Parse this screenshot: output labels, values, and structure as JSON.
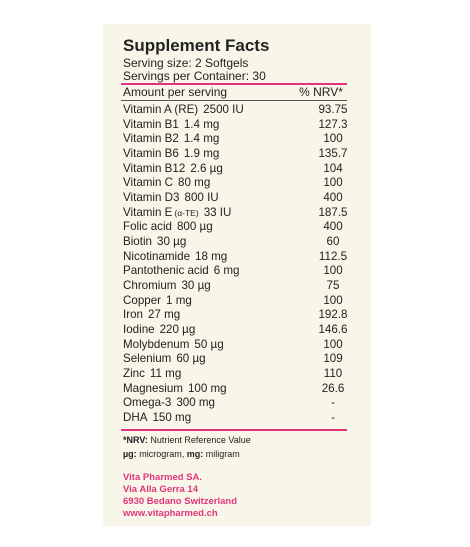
{
  "header": {
    "title": "Supplement Facts",
    "serving_size": "Serving size: 2 Softgels",
    "servings_per_container": "Servings per Container: 30"
  },
  "table": {
    "columns": [
      "Amount per serving",
      "% NRV*"
    ],
    "rows": [
      {
        "name": "Vitamin A (RE)",
        "amount": "2500 IU",
        "nrv": "93.75"
      },
      {
        "name": "Vitamin B1",
        "amount": "1.4 mg",
        "nrv": "127.3"
      },
      {
        "name": "Vitamin B2",
        "amount": "1.4 mg",
        "nrv": "100"
      },
      {
        "name": "Vitamin B6",
        "amount": "1.9 mg",
        "nrv": "135.7"
      },
      {
        "name": "Vitamin B12",
        "amount": "2.6 µg",
        "nrv": "104"
      },
      {
        "name": "Vitamin C",
        "amount": "80 mg",
        "nrv": "100"
      },
      {
        "name": "Vitamin D3",
        "amount": "800 IU",
        "nrv": "400"
      },
      {
        "name": "Vitamin E",
        "note": "(α-TE)",
        "amount": "33 IU",
        "nrv": "187.5"
      },
      {
        "name": "Folic acid",
        "amount": "800 µg",
        "nrv": "400"
      },
      {
        "name": "Biotin",
        "amount": "30 µg",
        "nrv": "60"
      },
      {
        "name": "Nicotinamide",
        "amount": "18 mg",
        "nrv": "112.5"
      },
      {
        "name": "Pantothenic acid",
        "amount": "6 mg",
        "nrv": "100"
      },
      {
        "name": "Chromium",
        "amount": "30 µg",
        "nrv": "75"
      },
      {
        "name": "Copper",
        "amount": "1 mg",
        "nrv": "100"
      },
      {
        "name": "Iron",
        "amount": "27 mg",
        "nrv": "192.8"
      },
      {
        "name": "Iodine",
        "amount": "220 µg",
        "nrv": "146.6"
      },
      {
        "name": "Molybdenum",
        "amount": "50 µg",
        "nrv": "100"
      },
      {
        "name": "Selenium",
        "amount": "60 µg",
        "nrv": "109"
      },
      {
        "name": "Zinc",
        "amount": "11 mg",
        "nrv": "110"
      },
      {
        "name": "Magnesium",
        "amount": "100 mg",
        "nrv": "26.6"
      },
      {
        "name": "Omega-3",
        "amount": "300 mg",
        "nrv": "-"
      },
      {
        "name": "DHA",
        "amount": "150 mg",
        "nrv": "-"
      }
    ]
  },
  "footnotes": [
    {
      "term": "*NRV:",
      "text": "Nutrient Reference Value"
    },
    {
      "term": "µg:",
      "text": "microgram,",
      "term2": "mg:",
      "text2": "miligram"
    }
  ],
  "address": [
    "Vita Pharmed SA.",
    "Via Alla Gerra 14",
    "6930 Bedano Switzerland",
    "www.vitapharmed.ch"
  ]
}
